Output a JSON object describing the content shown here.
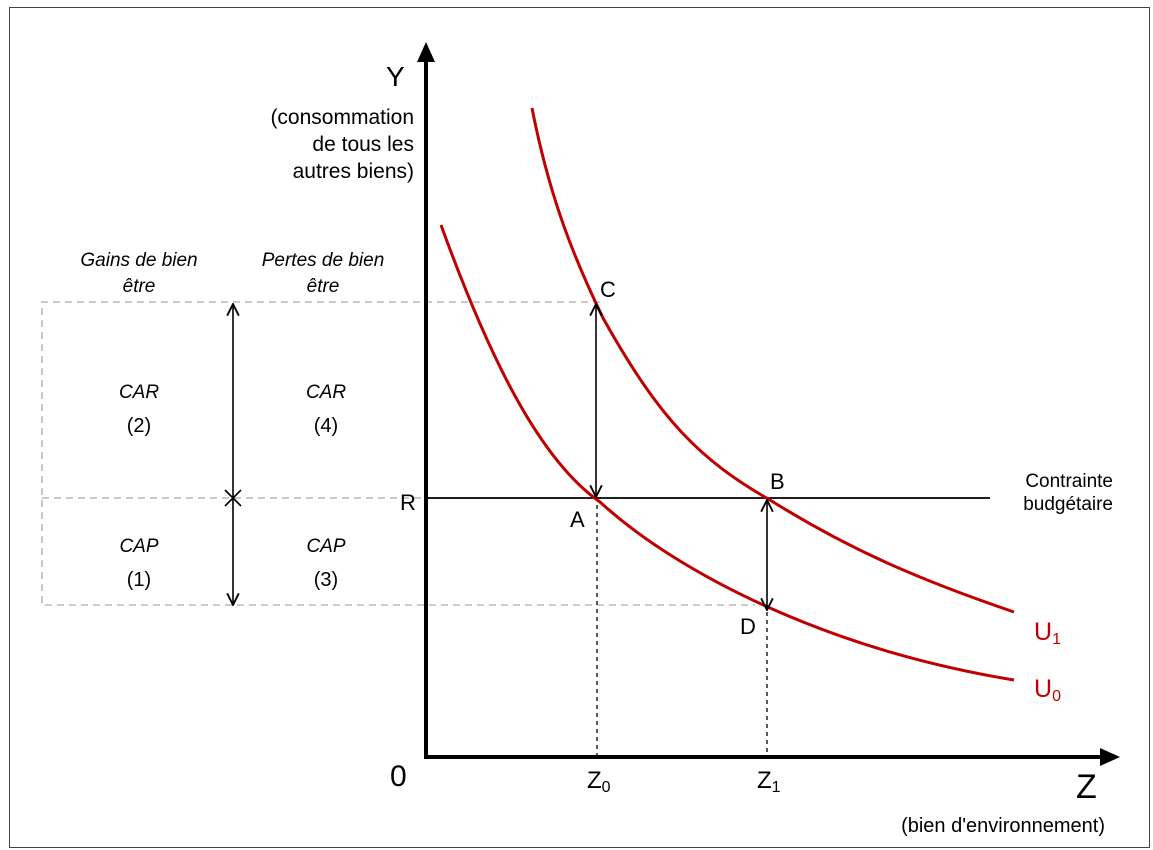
{
  "colors": {
    "curve": "#c00000",
    "axis": "#000000",
    "guide": "#aaaaaa"
  },
  "axes": {
    "y_letter": "Y",
    "y_desc": [
      "(consommation",
      "de tous les",
      "autres biens)"
    ],
    "x_letter": "Z",
    "x_desc": "(bien d'environnement)",
    "origin": "0"
  },
  "points": {
    "R": "R",
    "A": "A",
    "B": "B",
    "C": "C",
    "D": "D"
  },
  "ticks": {
    "z0_main": "Z",
    "z0_sub": "0",
    "z1_main": "Z",
    "z1_sub": "1"
  },
  "curves": {
    "u1_main": "U",
    "u1_sub": "1",
    "u0_main": "U",
    "u0_sub": "0"
  },
  "budget": {
    "line1": "Contrainte",
    "line2": "budgétaire"
  },
  "left_panel": {
    "gains": [
      "Gains de bien",
      "être"
    ],
    "pertes": [
      "Pertes de bien",
      "être"
    ],
    "car2": [
      "CAR",
      "(2)"
    ],
    "car4": [
      "CAR",
      "(4)"
    ],
    "cap1": [
      "CAP",
      "(1)"
    ],
    "cap3": [
      "CAP",
      "(3)"
    ]
  }
}
